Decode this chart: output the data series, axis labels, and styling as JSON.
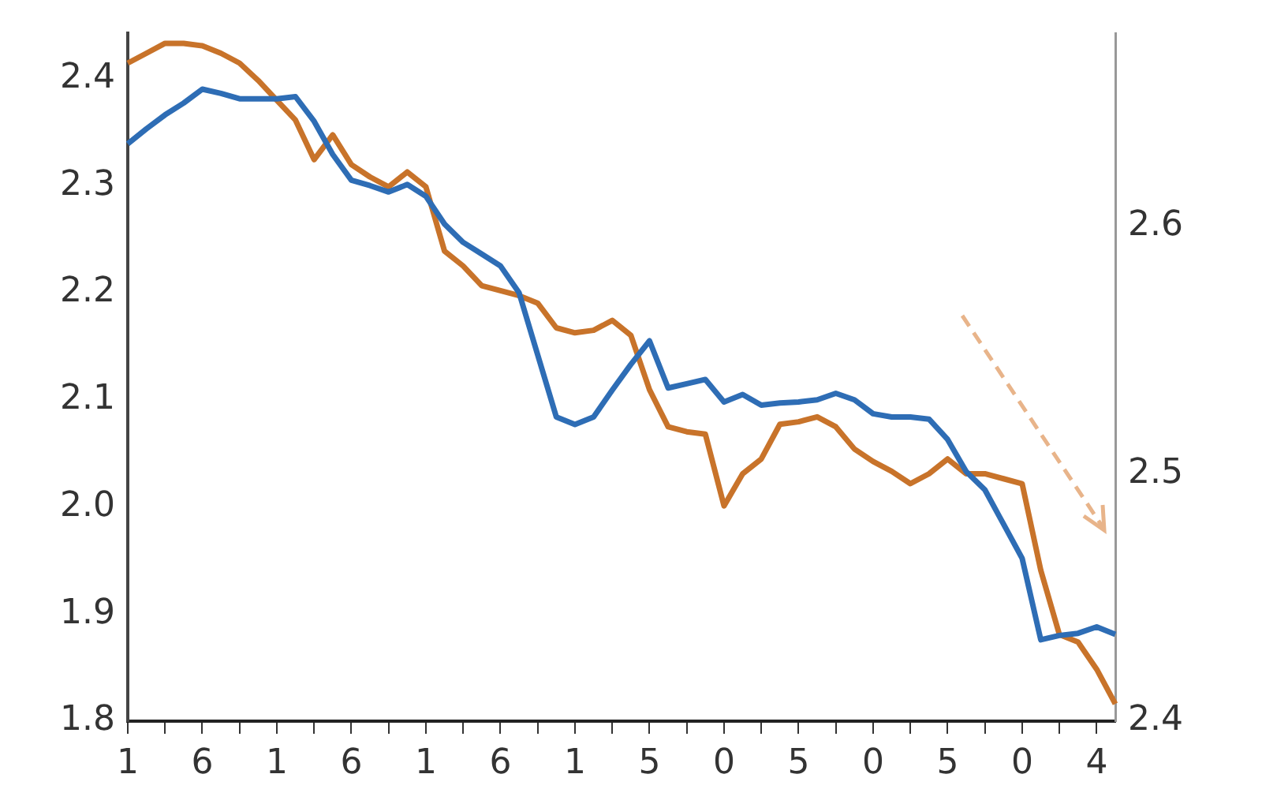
{
  "chart_data": {
    "type": "line",
    "grid": false,
    "legend": false,
    "marker": "none",
    "line_style": "solid",
    "categories": [
      "1",
      null,
      null,
      null,
      "6",
      null,
      null,
      null,
      "1",
      null,
      null,
      null,
      "6",
      null,
      null,
      null,
      "1",
      null,
      null,
      null,
      "6",
      null,
      null,
      null,
      "1",
      null,
      null,
      null,
      "5",
      null,
      null,
      null,
      "0",
      null,
      null,
      null,
      "5",
      null,
      null,
      null,
      "0",
      null,
      null,
      null,
      "5",
      null,
      null,
      null,
      "0",
      null,
      null,
      null,
      "4",
      null
    ],
    "ylim": [
      1.8,
      2.442
    ],
    "yticks": [
      1.8,
      1.9,
      {
        "value": 2,
        "label": "2.0"
      },
      2.1,
      2.2,
      2.3,
      2.4
    ],
    "y2lim": [
      2.4,
      2.678
    ],
    "y2ticks": [
      2.4,
      2.5,
      2.6
    ],
    "series": [
      {
        "color": "#2e6db5",
        "values": [
          2.339,
          2.353,
          2.366,
          2.377,
          2.39,
          2.386,
          2.381,
          2.381,
          2.381,
          2.383,
          2.36,
          2.329,
          2.305,
          2.3,
          2.294,
          2.301,
          2.29,
          2.264,
          2.247,
          2.236,
          2.225,
          2.2,
          2.142,
          2.084,
          2.077,
          2.084,
          2.109,
          2.133,
          2.155,
          2.111,
          2.115,
          2.119,
          2.098,
          2.105,
          2.095,
          2.097,
          2.098,
          2.1,
          2.106,
          2.1,
          2.087,
          2.084,
          2.084,
          2.082,
          2.063,
          2.033,
          2.016,
          1.984,
          1.952,
          1.876,
          1.88,
          1.882,
          1.888,
          1.881
        ]
      },
      {
        "color": "#c8732a",
        "axis": "y2",
        "values": [
          2.666,
          2.67,
          2.674,
          2.674,
          2.673,
          2.67,
          2.666,
          2.659,
          2.651,
          2.643,
          2.627,
          2.637,
          2.625,
          2.62,
          2.616,
          2.622,
          2.616,
          2.59,
          2.584,
          2.576,
          2.574,
          2.572,
          2.569,
          2.559,
          2.557,
          2.558,
          2.562,
          2.556,
          2.534,
          2.519,
          2.517,
          2.516,
          2.487,
          2.5,
          2.506,
          2.52,
          2.521,
          2.523,
          2.519,
          2.51,
          2.505,
          2.501,
          2.496,
          2.5,
          2.506,
          2.5,
          2.5,
          2.498,
          2.496,
          2.461,
          2.435,
          2.432,
          2.421,
          2.407
        ]
      }
    ]
  }
}
